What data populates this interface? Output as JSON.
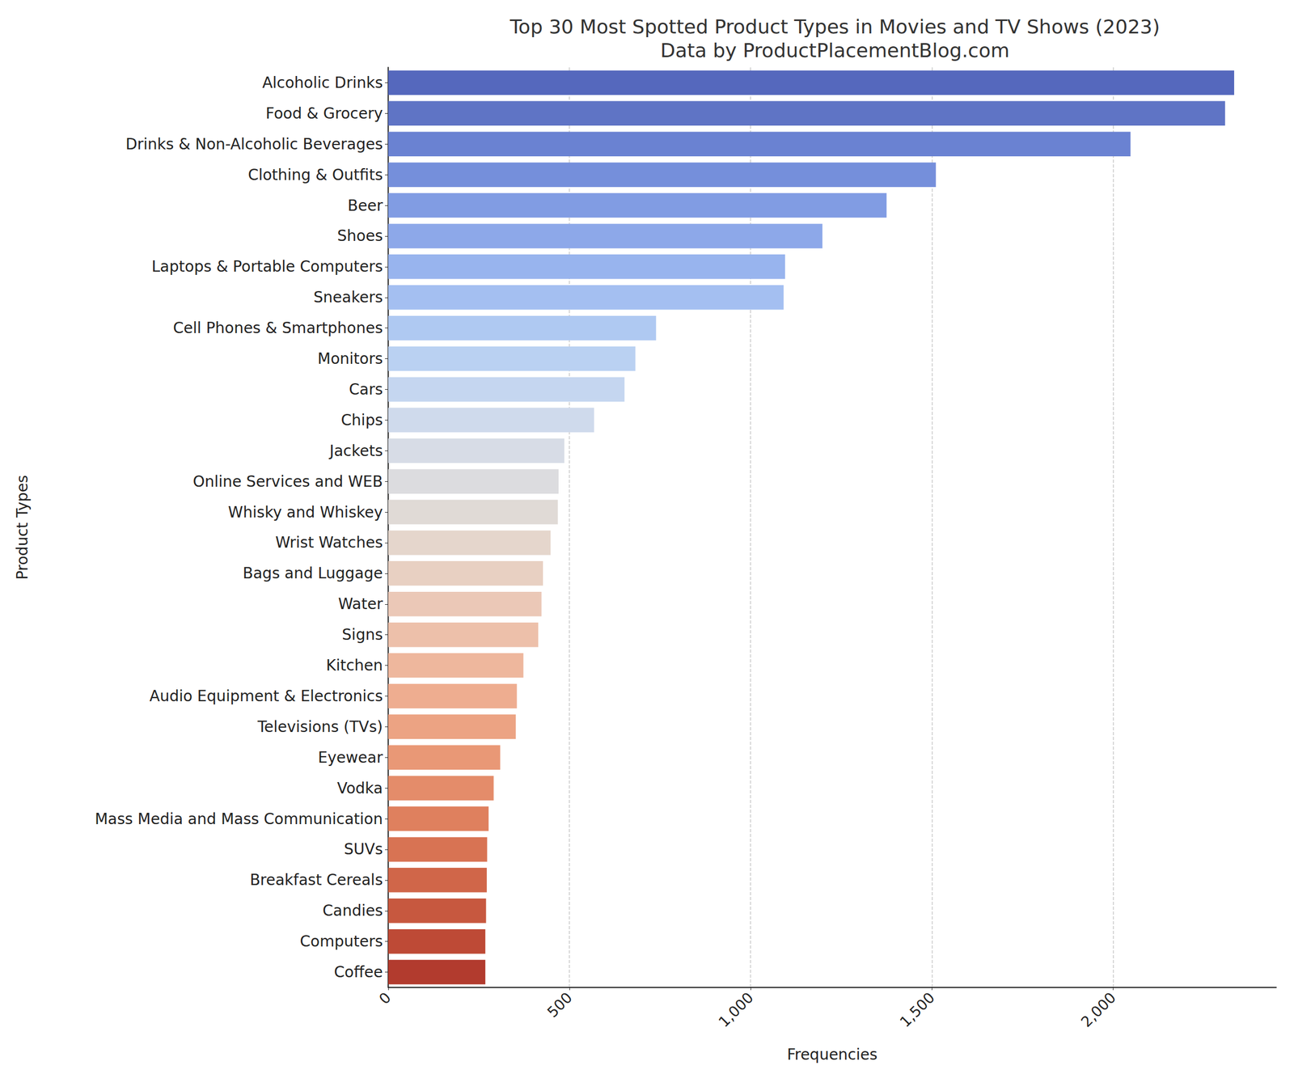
{
  "chart_data": {
    "type": "bar",
    "orientation": "horizontal",
    "title": "Top 30 Most Spotted Product Types in Movies and TV Shows (2023)\nData by ProductPlacementBlog.com",
    "x_label": "Frequencies",
    "y_label": "Product Types",
    "categories": [
      "Alcoholic Drinks",
      "Food & Grocery",
      "Drinks & Non-Alcoholic Beverages",
      "Clothing & Outfits",
      "Beer",
      "Shoes",
      "Laptops & Portable Computers",
      "Sneakers",
      "Cell Phones & Smartphones",
      "Monitors",
      "Cars",
      "Chips",
      "Jackets",
      "Online Services and WEB",
      "Whisky and Whiskey",
      "Wrist Watches",
      "Bags and Luggage",
      "Water",
      "Signs",
      "Kitchen",
      "Audio Equipment & Electronics",
      "Televisions (TVs)",
      "Eyewear",
      "Vodka",
      "Mass Media and Mass Communication",
      "SUVs",
      "Breakfast Cereals",
      "Candies",
      "Computers",
      "Coffee"
    ],
    "values": [
      2334,
      2309,
      2048,
      1511,
      1375,
      1198,
      1095,
      1091,
      739,
      682,
      652,
      568,
      486,
      470,
      468,
      448,
      427,
      423,
      414,
      373,
      355,
      352,
      309,
      291,
      277,
      273,
      272,
      270,
      268,
      268
    ],
    "colors": [
      "#5568bd",
      "#5f74c5",
      "#6a82d2",
      "#758fdb",
      "#819ce3",
      "#8da8e9",
      "#98b4ee",
      "#a4bff1",
      "#afc9f2",
      "#bad1f2",
      "#c5d6f0",
      "#cfdaec",
      "#d7dce6",
      "#dcdcdf",
      "#e0dad6",
      "#e5d6cc",
      "#e8d0c2",
      "#ebc8b7",
      "#edc0aa",
      "#eeb79d",
      "#eead90",
      "#eca383",
      "#e99876",
      "#e48c6a",
      "#df805e",
      "#d87353",
      "#d06649",
      "#c7583f",
      "#be4a36",
      "#b23b2e"
    ],
    "xlim": [
      0,
      2450
    ],
    "xticks": [
      0,
      500,
      1000,
      1500,
      2000
    ],
    "grid": true
  }
}
